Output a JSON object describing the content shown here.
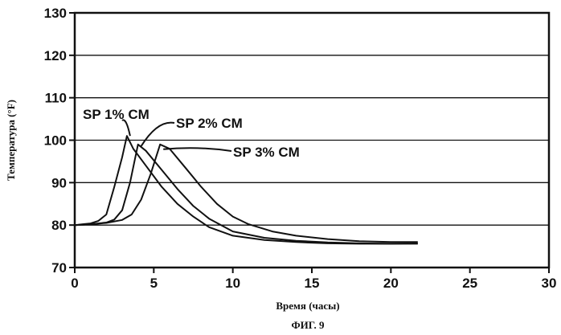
{
  "chart_data": {
    "type": "line",
    "xlabel": "Время (часы)",
    "ylabel": "Температура (°F)",
    "caption": "ФИГ. 9",
    "xlim": [
      0,
      30
    ],
    "ylim": [
      70,
      130
    ],
    "x_ticks": [
      0,
      5,
      10,
      15,
      20,
      25,
      30
    ],
    "y_ticks": [
      70,
      80,
      90,
      100,
      110,
      120,
      130
    ],
    "grid": "horizontal",
    "line_color": "#111111",
    "series": [
      {
        "name": "SP 1% CM",
        "points": [
          [
            0,
            80
          ],
          [
            0.5,
            80.2
          ],
          [
            1,
            80.4
          ],
          [
            1.5,
            81
          ],
          [
            2,
            82.5
          ],
          [
            2.5,
            89
          ],
          [
            3,
            96
          ],
          [
            3.3,
            101
          ],
          [
            3.7,
            98
          ],
          [
            4.5,
            94
          ],
          [
            5.5,
            89
          ],
          [
            6.5,
            85
          ],
          [
            7.5,
            82
          ],
          [
            8.5,
            79.5
          ],
          [
            10,
            77.5
          ],
          [
            12,
            76.5
          ],
          [
            14,
            76
          ],
          [
            16,
            75.7
          ],
          [
            18,
            75.6
          ],
          [
            20,
            75.6
          ],
          [
            21.7,
            75.6
          ]
        ]
      },
      {
        "name": "SP 2% CM",
        "points": [
          [
            0,
            80
          ],
          [
            1,
            80.2
          ],
          [
            2,
            80.6
          ],
          [
            2.5,
            81.3
          ],
          [
            3,
            83.5
          ],
          [
            3.5,
            90
          ],
          [
            4,
            99
          ],
          [
            4.5,
            97.5
          ],
          [
            5.5,
            93
          ],
          [
            6.5,
            88.5
          ],
          [
            7.5,
            84.5
          ],
          [
            8.5,
            81.5
          ],
          [
            10,
            78.5
          ],
          [
            12,
            77
          ],
          [
            14,
            76.3
          ],
          [
            16,
            75.9
          ],
          [
            18,
            75.7
          ],
          [
            20,
            75.6
          ],
          [
            21.7,
            75.7
          ]
        ]
      },
      {
        "name": "SP 3% CM",
        "points": [
          [
            0,
            80
          ],
          [
            1,
            80.2
          ],
          [
            2,
            80.5
          ],
          [
            3,
            81.2
          ],
          [
            3.6,
            82.5
          ],
          [
            4.2,
            86
          ],
          [
            4.8,
            92
          ],
          [
            5.4,
            99
          ],
          [
            6,
            98
          ],
          [
            7,
            93.5
          ],
          [
            8,
            89
          ],
          [
            9,
            85
          ],
          [
            10,
            82
          ],
          [
            11,
            80.2
          ],
          [
            12.5,
            78.5
          ],
          [
            14,
            77.5
          ],
          [
            16,
            76.7
          ],
          [
            18,
            76.2
          ],
          [
            20,
            76
          ],
          [
            21.7,
            76
          ]
        ]
      }
    ],
    "annotations": [
      {
        "text": "SP 1% CM",
        "series": "SP 1% CM"
      },
      {
        "text": "SP 2% CM",
        "series": "SP 2% CM"
      },
      {
        "text": "SP 3% CM",
        "series": "SP 3% CM"
      }
    ]
  }
}
